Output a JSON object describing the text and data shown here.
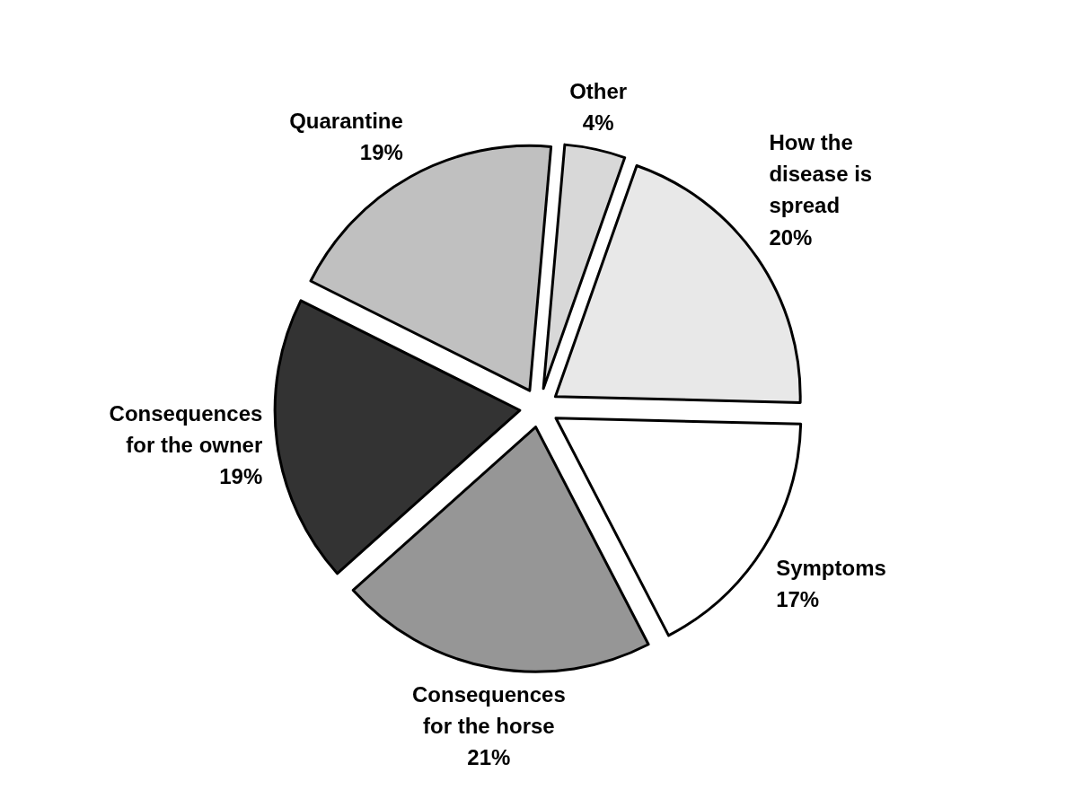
{
  "chart_data": {
    "type": "pie",
    "categories": [
      "Other",
      "How the disease is spread",
      "Symptoms",
      "Consequences for the horse",
      "Consequences for the owner",
      "Quarantine"
    ],
    "values": [
      4,
      20,
      17,
      21,
      19,
      19
    ],
    "value_labels": [
      "4%",
      "20%",
      "17%",
      "21%",
      "19%",
      "19%"
    ],
    "colors": [
      "#d8d8d8",
      "#e8e8e8",
      "#ffffff",
      "#969696",
      "#333333",
      "#c0c0c0"
    ]
  }
}
